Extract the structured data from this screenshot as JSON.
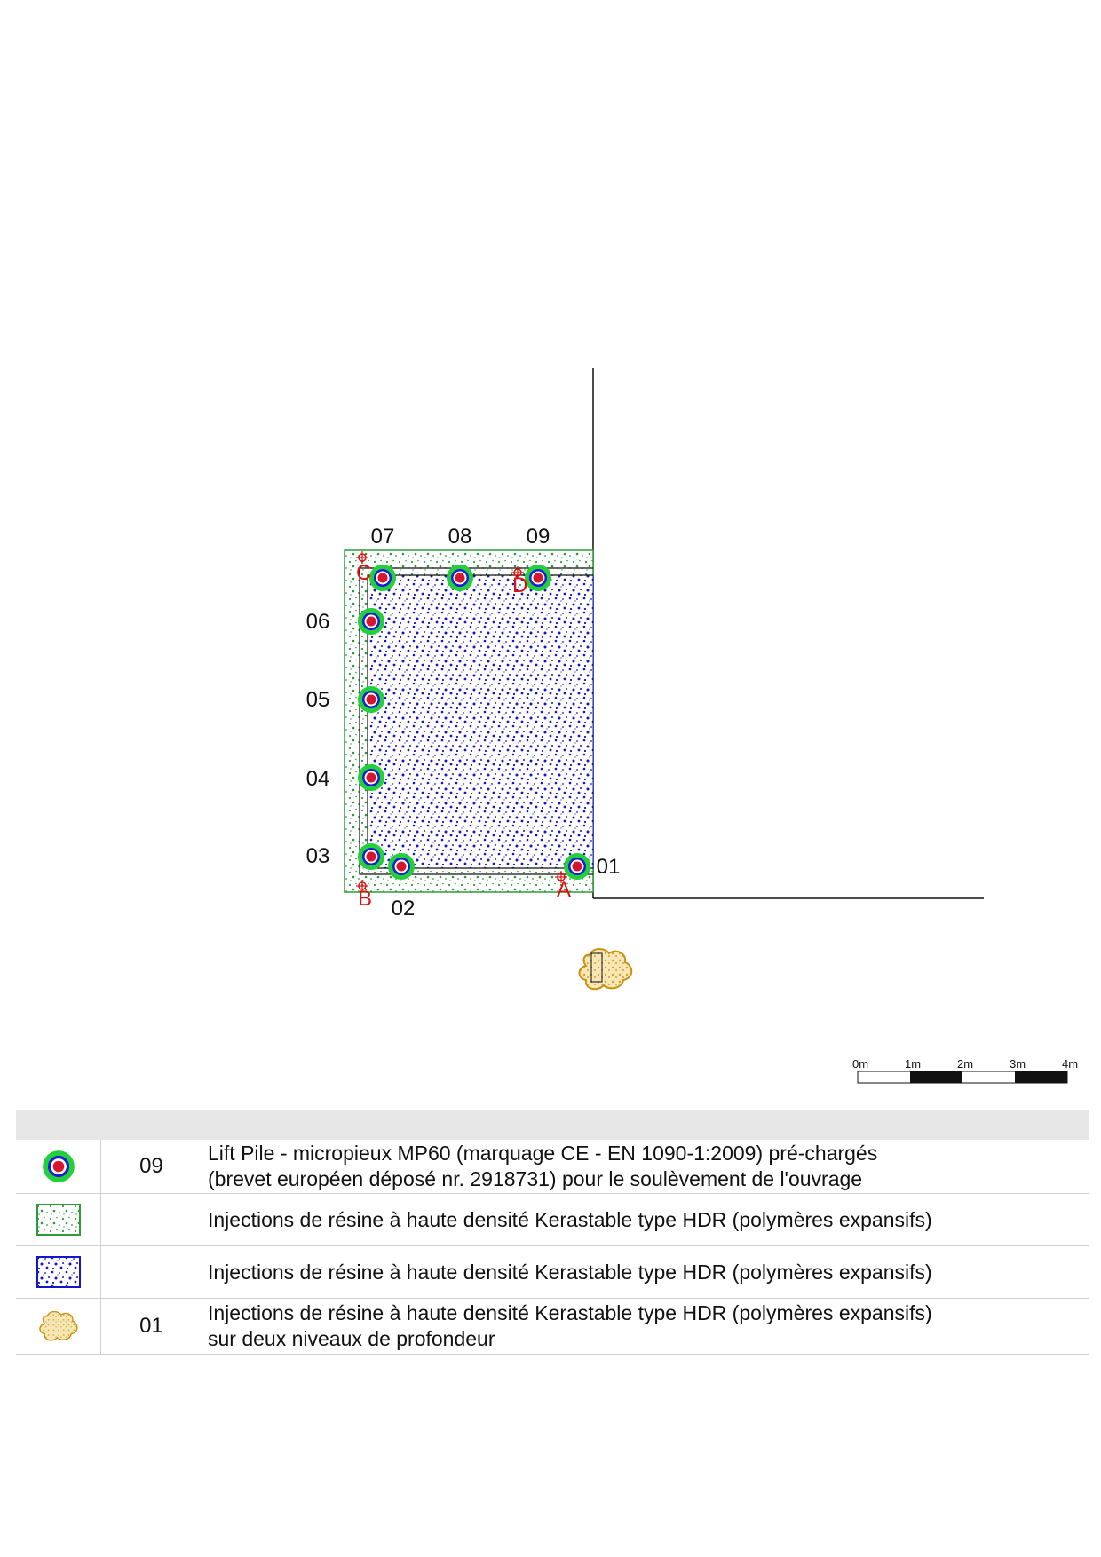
{
  "plan": {
    "piles": [
      {
        "id": "07",
        "label": "07"
      },
      {
        "id": "08",
        "label": "08"
      },
      {
        "id": "09",
        "label": "09"
      },
      {
        "id": "06",
        "label": "06"
      },
      {
        "id": "05",
        "label": "05"
      },
      {
        "id": "04",
        "label": "04"
      },
      {
        "id": "03",
        "label": "03"
      },
      {
        "id": "02",
        "label": "02"
      },
      {
        "id": "01",
        "label": "01"
      }
    ],
    "corners": [
      "A",
      "B",
      "C",
      "D"
    ],
    "colors": {
      "pile_outer": "#22d13a",
      "pile_mid": "#1a1ae0",
      "pile_core": "#d8152f",
      "green_fill": "#2e9a3a",
      "blue_fill": "#1515c8",
      "gold_fill": "#d7a21c",
      "corner_marker": "#e01010"
    }
  },
  "scale_bar": {
    "ticks": [
      "0m",
      "1m",
      "2m",
      "3m",
      "4m"
    ]
  },
  "legend": {
    "rows": [
      {
        "symbol": "pile-icon",
        "qty": "09",
        "lines": [
          "Lift Pile - micropieux MP60 (marquage CE - EN 1090-1:2009) pré-chargés",
          "(brevet européen déposé nr. 2918731) pour le soulèvement de l'ouvrage"
        ]
      },
      {
        "symbol": "green-resin-icon",
        "qty": "",
        "lines": [
          "Injections de résine à haute densité Kerastable type HDR (polymères expansifs)"
        ]
      },
      {
        "symbol": "blue-resin-icon",
        "qty": "",
        "lines": [
          "Injections de résine à haute densité Kerastable type HDR (polymères expansifs)"
        ]
      },
      {
        "symbol": "gold-resin-icon",
        "qty": "01",
        "lines": [
          "Injections de résine à haute densité Kerastable type HDR (polymères expansifs)",
          "sur deux niveaux de profondeur"
        ]
      }
    ]
  }
}
